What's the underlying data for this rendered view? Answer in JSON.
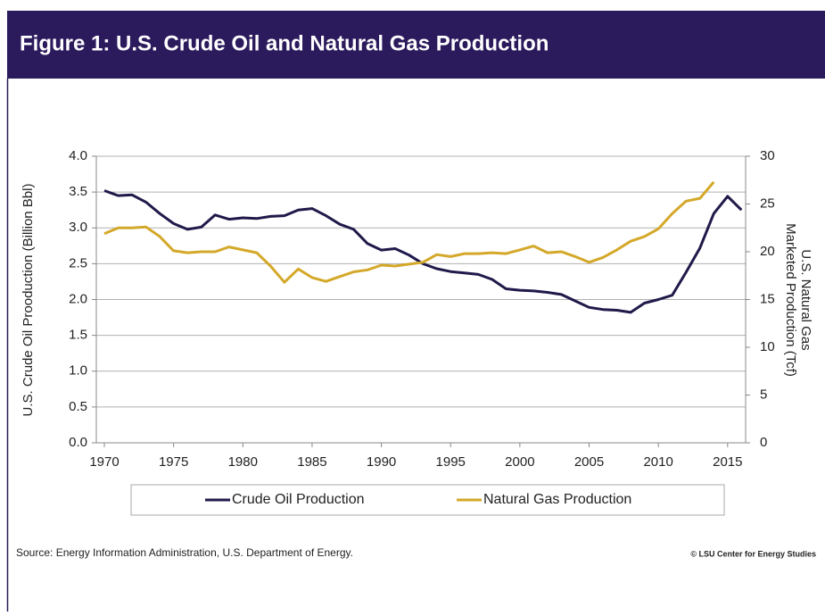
{
  "chart_data": {
    "type": "line",
    "title": "Figure 1: U.S. Crude Oil and Natural Gas Production",
    "y_label": "U.S. Crude Oil Prooduction (Billion Bbl)",
    "y2_label": [
      "U.S. Natural Gas",
      "Marketed Production (Tcf)"
    ],
    "source": "Source: Energy Information Administration, U.S. Department of Energy.",
    "credit": "© LSU Center for Energy Studies",
    "x": [
      1970,
      1971,
      1972,
      1973,
      1974,
      1975,
      1976,
      1977,
      1978,
      1979,
      1980,
      1981,
      1982,
      1983,
      1984,
      1985,
      1986,
      1987,
      1988,
      1989,
      1990,
      1991,
      1992,
      1993,
      1994,
      1995,
      1996,
      1997,
      1998,
      1999,
      2000,
      2001,
      2002,
      2003,
      2004,
      2005,
      2006,
      2007,
      2008,
      2009,
      2010,
      2011,
      2012,
      2013,
      2014,
      2015,
      2016
    ],
    "series": [
      {
        "name": "Crude Oil Production",
        "color": "#1f1a4a",
        "axis": "y",
        "values": [
          3.52,
          3.45,
          3.46,
          3.36,
          3.2,
          3.06,
          2.98,
          3.01,
          3.18,
          3.12,
          3.14,
          3.13,
          3.16,
          3.17,
          3.25,
          3.27,
          3.17,
          3.05,
          2.98,
          2.78,
          2.69,
          2.71,
          2.62,
          2.5,
          2.43,
          2.39,
          2.37,
          2.35,
          2.28,
          2.15,
          2.13,
          2.12,
          2.1,
          2.07,
          1.98,
          1.89,
          1.86,
          1.85,
          1.82,
          1.95,
          2.0,
          2.06,
          2.38,
          2.72,
          3.2,
          3.44,
          3.25
        ]
      },
      {
        "name": "Natural Gas Production",
        "color": "#d4a82a",
        "axis": "y2",
        "values": [
          21.9,
          22.5,
          22.5,
          22.6,
          21.6,
          20.1,
          19.9,
          20.0,
          20.0,
          20.5,
          20.2,
          19.9,
          18.5,
          16.8,
          18.2,
          17.3,
          16.9,
          17.4,
          17.9,
          18.1,
          18.6,
          18.5,
          18.7,
          18.9,
          19.7,
          19.5,
          19.8,
          19.8,
          19.9,
          19.8,
          20.2,
          20.6,
          19.9,
          20.0,
          19.5,
          18.9,
          19.4,
          20.2,
          21.1,
          21.6,
          22.4,
          24.0,
          25.3,
          25.6,
          27.3,
          null,
          null
        ]
      }
    ],
    "xlim": [
      1970,
      2016.3
    ],
    "xticks": [
      1970,
      1975,
      1980,
      1985,
      1990,
      1995,
      2000,
      2005,
      2010,
      2015
    ],
    "ylim": [
      0,
      4
    ],
    "yticks": [
      {
        "value": 0,
        "label": "0.0"
      },
      0.5,
      {
        "value": 1,
        "label": "1.0"
      },
      1.5,
      {
        "value": 2,
        "label": "2.0"
      },
      2.5,
      {
        "value": 3,
        "label": "3.0"
      },
      3.5,
      {
        "value": 4,
        "label": "4.0"
      }
    ],
    "y2lim": [
      0,
      30
    ],
    "y2ticks": [
      0,
      5,
      10,
      15,
      20,
      25,
      30
    ],
    "grid": true,
    "legend": "bottom"
  }
}
